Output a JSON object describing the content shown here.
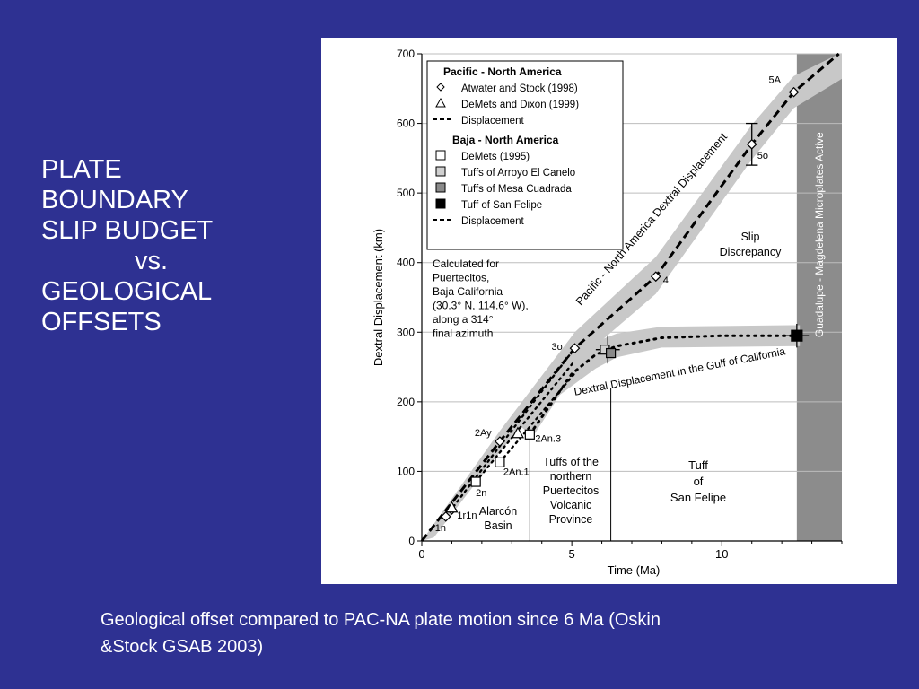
{
  "slide": {
    "title_lines": [
      "PLATE",
      "BOUNDARY",
      "SLIP BUDGET",
      "vs.",
      "GEOLOGICAL",
      "OFFSETS"
    ],
    "caption_lines": [
      "Geological offset compared to PAC-NA plate motion since 6 Ma (Oskin",
      "&Stock GSAB 2003)"
    ],
    "background_color": "#2e3192",
    "text_color": "#ffffff"
  },
  "chart_data": {
    "type": "line",
    "xlabel": "Time (Ma)",
    "ylabel": "Dextral Displacement (km)",
    "xlim": [
      0,
      14
    ],
    "ylim": [
      0,
      700
    ],
    "x_ticks": [
      0,
      5,
      10
    ],
    "y_ticks": [
      0,
      100,
      200,
      300,
      400,
      500,
      600,
      700
    ],
    "grid": "horizontal",
    "legend": {
      "placement": "top-left",
      "groups": [
        {
          "title": "Pacific - North America",
          "entries": [
            {
              "symbol": "diamond",
              "label": "Atwater and Stock (1998)"
            },
            {
              "symbol": "triangle",
              "label": "DeMets and Dixon (1999)"
            },
            {
              "symbol": "dashed-line",
              "label": "Displacement"
            }
          ]
        },
        {
          "title": "Baja - North America",
          "entries": [
            {
              "symbol": "square-white",
              "label": "DeMets (1995)"
            },
            {
              "symbol": "square-lightgray",
              "label": "Tuffs of Arroyo El Canelo"
            },
            {
              "symbol": "square-gray",
              "label": "Tuffs of Mesa Cuadrada"
            },
            {
              "symbol": "square-black",
              "label": "Tuff of San Felipe"
            },
            {
              "symbol": "dashed-line",
              "label": "Displacement"
            }
          ]
        }
      ]
    },
    "series": [
      {
        "name": "Atwater and Stock (1998)",
        "marker": "diamond",
        "points": [
          {
            "x": 0.8,
            "y": 35,
            "label": "1n"
          },
          {
            "x": 1.0,
            "y": 45,
            "label": "1r1n"
          },
          {
            "x": 2.6,
            "y": 143,
            "label": "2Ay"
          },
          {
            "x": 5.1,
            "y": 277,
            "label": "3o"
          },
          {
            "x": 7.8,
            "y": 380,
            "label": "4"
          },
          {
            "x": 11.0,
            "y": 570,
            "label": "5o"
          },
          {
            "x": 12.4,
            "y": 645,
            "label": "5A"
          }
        ]
      },
      {
        "name": "DeMets and Dixon (1999)",
        "marker": "triangle",
        "points": [
          {
            "x": 1.0,
            "y": 48,
            "label": ""
          },
          {
            "x": 3.2,
            "y": 155,
            "label": ""
          }
        ]
      },
      {
        "name": "DeMets (1995)",
        "marker": "square-white",
        "points": [
          {
            "x": 1.8,
            "y": 85,
            "label": "2n"
          },
          {
            "x": 2.6,
            "y": 113,
            "label": "2An.1"
          },
          {
            "x": 3.6,
            "y": 153,
            "label": "2An.3"
          }
        ]
      },
      {
        "name": "Tuffs of Arroyo El Canelo",
        "marker": "square-lightgray",
        "points": [
          {
            "x": 6.1,
            "y": 275
          }
        ]
      },
      {
        "name": "Tuffs of Mesa Cuadrada",
        "marker": "square-gray",
        "points": [
          {
            "x": 6.3,
            "y": 270
          }
        ]
      },
      {
        "name": "Tuff of San Felipe",
        "marker": "square-black",
        "points": [
          {
            "x": 12.5,
            "y": 295
          }
        ]
      },
      {
        "name": "Pacific - North America Displacement",
        "style": "dashed",
        "points": [
          [
            0,
            0
          ],
          [
            2.6,
            143
          ],
          [
            5.1,
            277
          ],
          [
            7.8,
            380
          ],
          [
            11.0,
            570
          ],
          [
            12.4,
            645
          ],
          [
            13.9,
            700
          ]
        ]
      },
      {
        "name": "Baja - North America Displacement",
        "style": "dotted",
        "points": [
          [
            3.6,
            153
          ],
          [
            5.0,
            240
          ],
          [
            5.8,
            268
          ],
          [
            6.5,
            280
          ],
          [
            8.0,
            292
          ],
          [
            10.0,
            295
          ],
          [
            12.5,
            295
          ]
        ]
      }
    ],
    "annotations": [
      {
        "text": "Pacific - North America Dextral Displacement"
      },
      {
        "text": "Dextral Displacement in the Gulf of California"
      },
      {
        "text": "Slip Discrepancy"
      },
      {
        "text": "Guadalupe - Magdelena Microplates Active"
      },
      {
        "text": "Calculated for Puertecitos, Baja California (30.3° N, 114.6° W), along a 314° final azimuth"
      },
      {
        "text": "Alarcón Basin"
      },
      {
        "text": "Tuffs of the northern Puertecitos Volcanic Province"
      },
      {
        "text": "Tuff of San Felipe"
      }
    ],
    "annotation_lines": {
      "calc_note": [
        "Calculated for",
        "Puertecitos,",
        "Baja California",
        "(30.3° N, 114.6° W),",
        "along a 314°",
        "final azimuth"
      ],
      "slip_discrepancy": [
        "Slip",
        "Discrepancy"
      ],
      "alarcon": [
        "Alarcón",
        "Basin"
      ],
      "puertecitos": [
        "Tuffs of the",
        "northern",
        "Puertecitos",
        "Volcanic",
        "Province"
      ],
      "san_felipe": [
        "Tuff",
        "of",
        "San Felipe"
      ]
    },
    "colors": {
      "band": "#c8c8c8",
      "microplate_band": "#8c8c8c",
      "grid": "#bdbdbd",
      "line": "#000000"
    }
  }
}
